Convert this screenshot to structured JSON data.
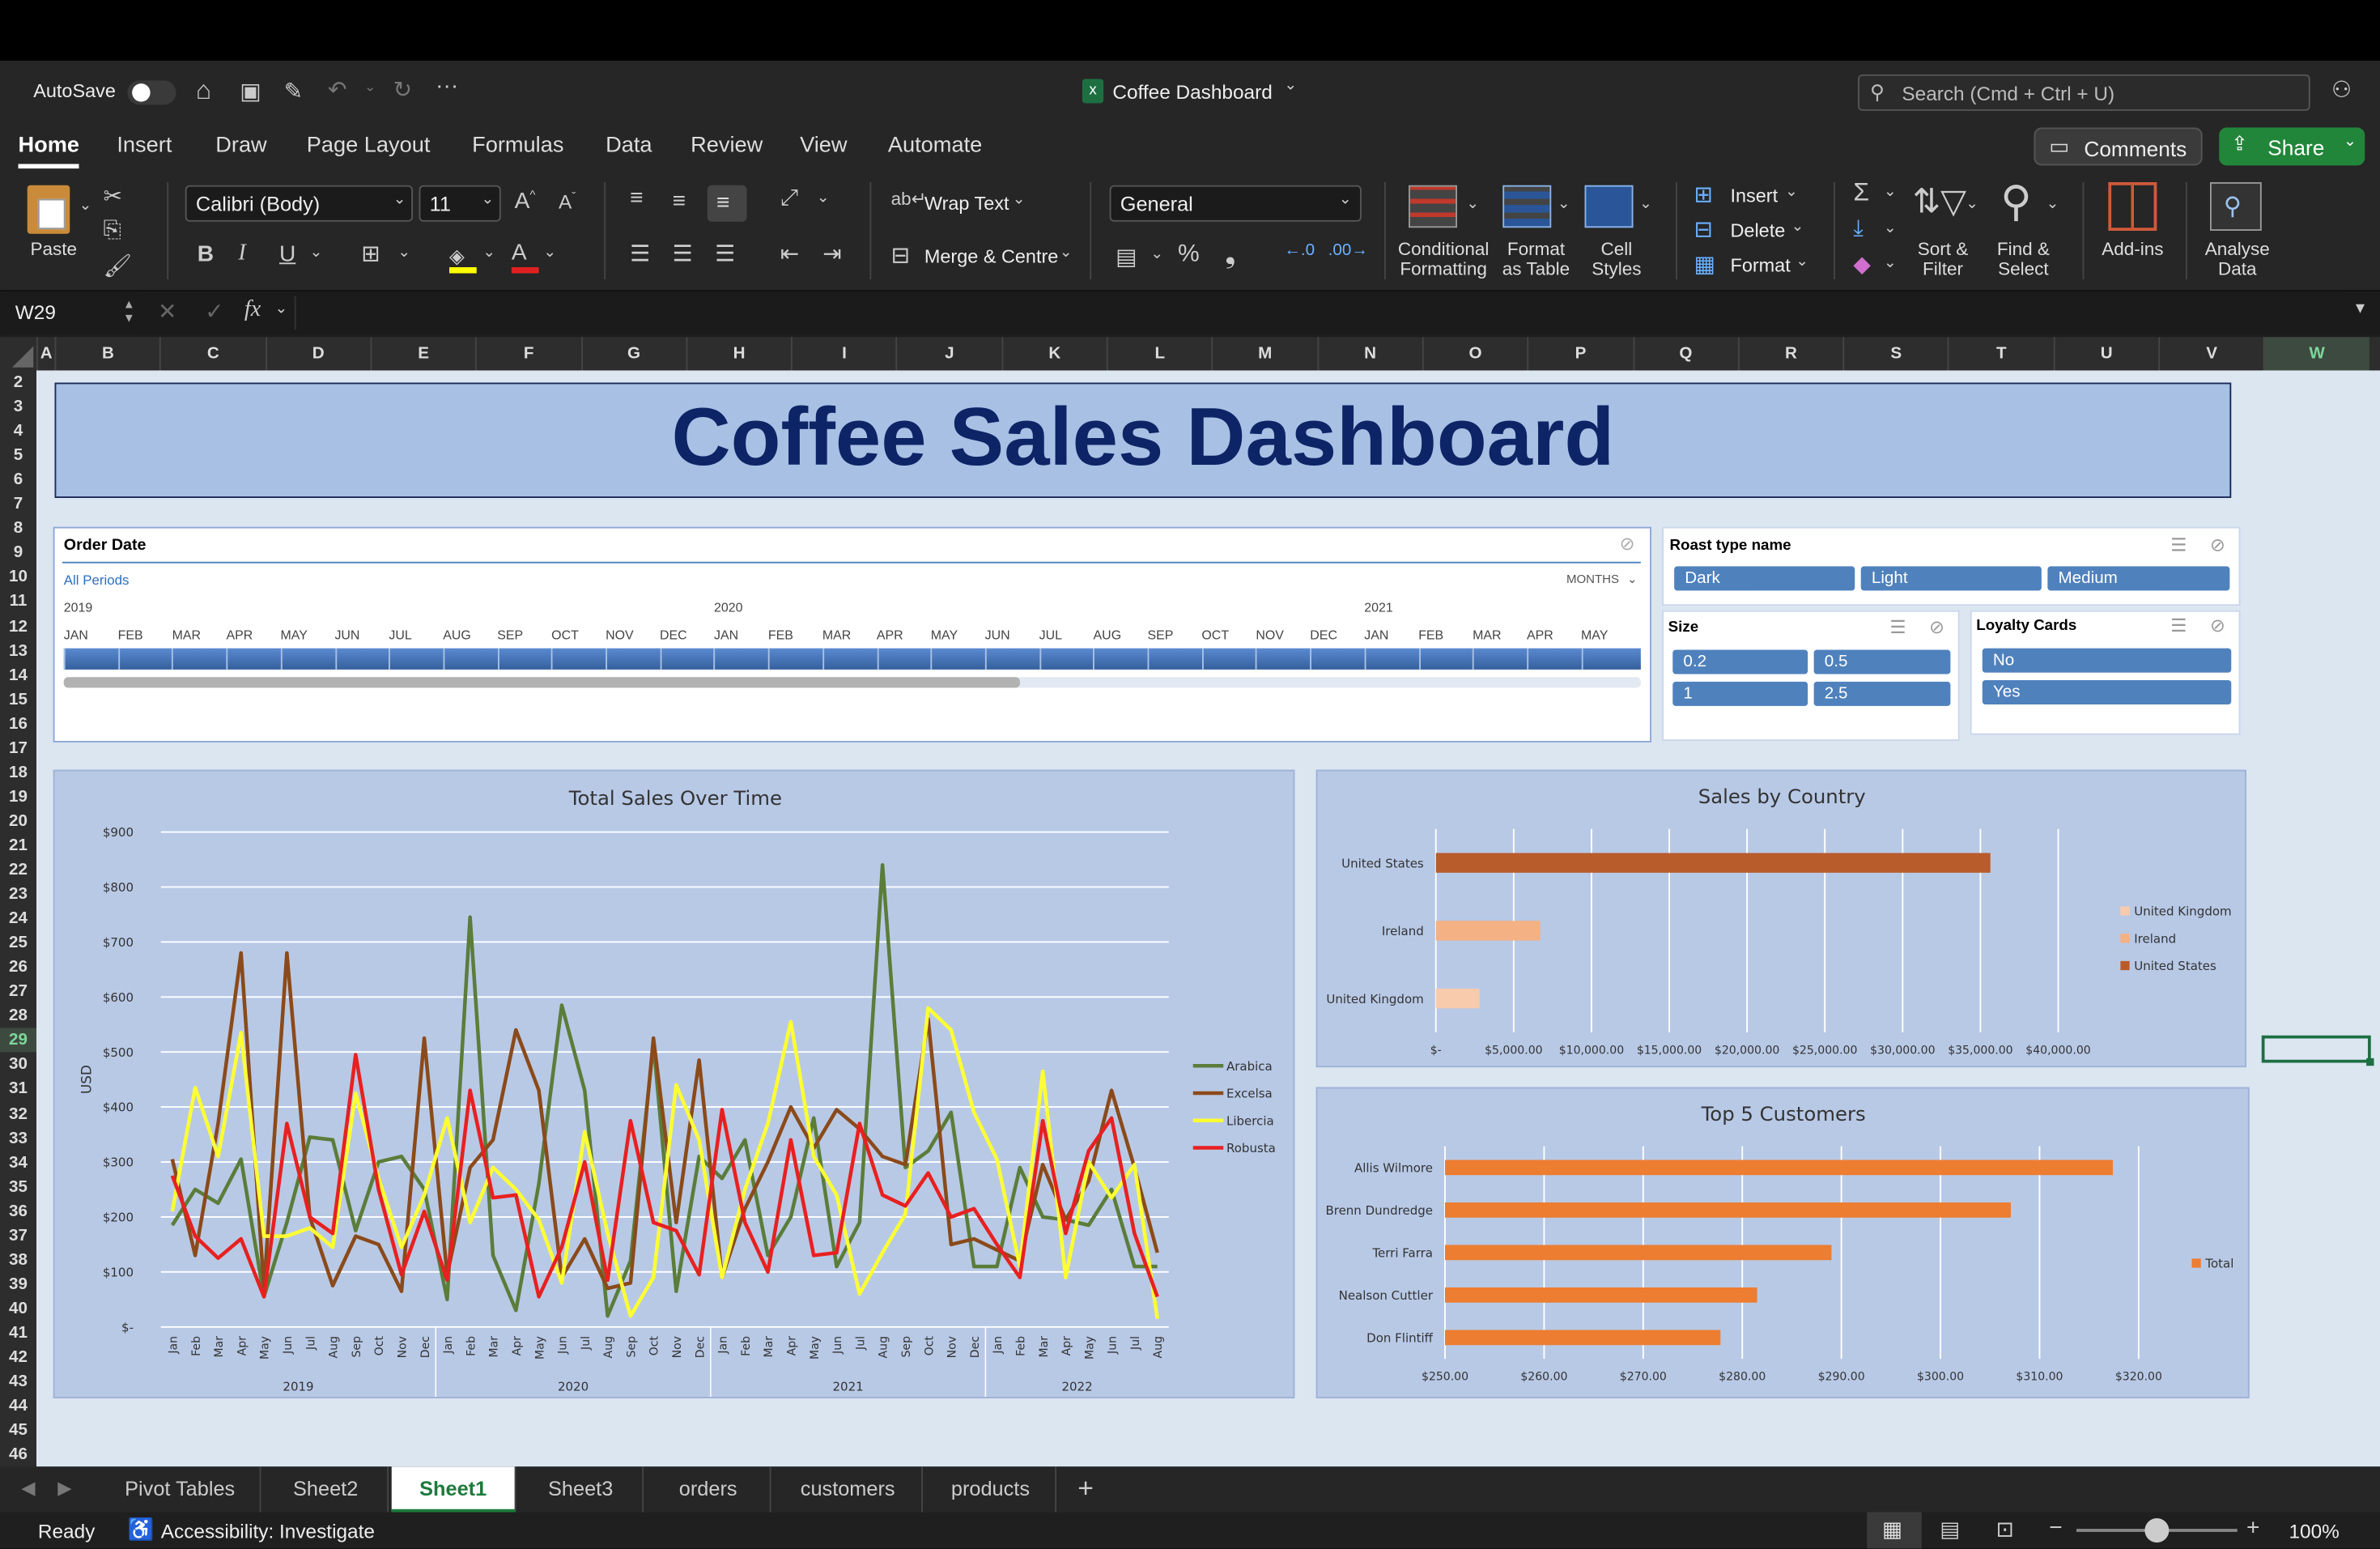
{
  "titlebar": {
    "autosave": "AutoSave",
    "doc_title": "Coffee Dashboard",
    "search_placeholder": "Search (Cmd + Ctrl + U)"
  },
  "menu": {
    "items": [
      "Home",
      "Insert",
      "Draw",
      "Page Layout",
      "Formulas",
      "Data",
      "Review",
      "View",
      "Automate"
    ],
    "comments": "Comments",
    "share": "Share"
  },
  "ribbon": {
    "paste": "Paste",
    "font": "Calibri (Body)",
    "size": "11",
    "wrap": "Wrap Text",
    "merge": "Merge & Centre",
    "format": "General",
    "cond": "Conditional Formatting",
    "fmt_table": "Format as Table",
    "cell_styles": "Cell Styles",
    "insert": "Insert",
    "delete": "Delete",
    "format_btn": "Format",
    "sort": "Sort & Filter",
    "find": "Find & Select",
    "addins": "Add-ins",
    "analyse": "Analyse Data"
  },
  "formula_bar": {
    "name_box": "W29",
    "value": ""
  },
  "columns": [
    "A",
    "B",
    "C",
    "D",
    "E",
    "F",
    "G",
    "H",
    "I",
    "J",
    "K",
    "L",
    "M",
    "N",
    "O",
    "P",
    "Q",
    "R",
    "S",
    "T",
    "U",
    "V",
    "W"
  ],
  "rows": [
    "2",
    "3",
    "4",
    "5",
    "6",
    "7",
    "8",
    "9",
    "10",
    "11",
    "12",
    "13",
    "14",
    "15",
    "16",
    "17",
    "18",
    "19",
    "20",
    "21",
    "22",
    "23",
    "24",
    "25",
    "26",
    "27",
    "28",
    "29",
    "30",
    "31",
    "32",
    "33",
    "34",
    "35",
    "36",
    "37",
    "38",
    "39",
    "40",
    "41",
    "42",
    "43",
    "44",
    "45",
    "46"
  ],
  "dashboard": {
    "title": "Coffee Sales Dashboard"
  },
  "timeline": {
    "title": "Order Date",
    "all_periods": "All Periods",
    "level": "MONTHS",
    "years": [
      "2019",
      "2020",
      "2021"
    ],
    "months": [
      "JAN",
      "FEB",
      "MAR",
      "APR",
      "MAY",
      "JUN",
      "JUL",
      "AUG",
      "SEP",
      "OCT",
      "NOV",
      "DEC",
      "JAN",
      "FEB",
      "MAR",
      "APR",
      "MAY",
      "JUN",
      "JUL",
      "AUG",
      "SEP",
      "OCT",
      "NOV",
      "DEC",
      "JAN",
      "FEB",
      "MAR",
      "APR",
      "MAY"
    ]
  },
  "slicers": {
    "roast": {
      "title": "Roast type name",
      "items": [
        "Dark",
        "Light",
        "Medium"
      ]
    },
    "size": {
      "title": "Size",
      "items": [
        "0.2",
        "0.5",
        "1",
        "2.5"
      ]
    },
    "loyalty": {
      "title": "Loyalty Cards",
      "items": [
        "No",
        "Yes"
      ]
    }
  },
  "chart_data": [
    {
      "type": "line",
      "title": "Total Sales Over Time",
      "ylabel": "USD",
      "ylim": [
        0,
        900
      ],
      "yticks": [
        "$-",
        "$100",
        "$200",
        "$300",
        "$400",
        "$500",
        "$600",
        "$700",
        "$800",
        "$900"
      ],
      "months": [
        "Jan",
        "Feb",
        "Mar",
        "Apr",
        "May",
        "Jun",
        "Jul",
        "Aug",
        "Sep",
        "Oct",
        "Nov",
        "Dec",
        "Jan",
        "Feb",
        "Mar",
        "Apr",
        "May",
        "Jun",
        "Jul",
        "Aug",
        "Sep",
        "Oct",
        "Nov",
        "Dec",
        "Jan",
        "Feb",
        "Mar",
        "Apr",
        "May",
        "Jun",
        "Jul",
        "Aug",
        "Sep",
        "Oct",
        "Nov",
        "Dec",
        "Jan",
        "Feb",
        "Mar",
        "Apr",
        "May",
        "Jun",
        "Jul",
        "Aug"
      ],
      "years": [
        "2019",
        "2020",
        "2021",
        "2022"
      ],
      "series": [
        {
          "name": "Arabica",
          "color": "#5a7d3a",
          "values": [
            185,
            250,
            225,
            305,
            55,
            190,
            345,
            340,
            175,
            300,
            310,
            250,
            50,
            745,
            130,
            30,
            260,
            585,
            430,
            20,
            120,
            515,
            65,
            310,
            270,
            340,
            130,
            200,
            380,
            110,
            190,
            840,
            290,
            320,
            390,
            110,
            110,
            290,
            200,
            195,
            185,
            250,
            110,
            110
          ]
        },
        {
          "name": "Excelsa",
          "color": "#8b4a1a",
          "values": [
            305,
            130,
            370,
            680,
            70,
            680,
            200,
            75,
            165,
            150,
            65,
            525,
            95,
            290,
            340,
            540,
            430,
            90,
            160,
            70,
            80,
            525,
            190,
            485,
            90,
            215,
            300,
            400,
            325,
            395,
            360,
            310,
            295,
            560,
            150,
            160,
            140,
            120,
            295,
            195,
            265,
            430,
            290,
            135
          ]
        },
        {
          "name": "Libercia",
          "color": "#ffff33",
          "values": [
            210,
            435,
            310,
            535,
            165,
            165,
            180,
            145,
            425,
            270,
            145,
            240,
            380,
            190,
            290,
            250,
            195,
            80,
            355,
            170,
            20,
            90,
            440,
            340,
            90,
            250,
            370,
            555,
            310,
            240,
            60,
            135,
            205,
            580,
            540,
            390,
            305,
            110,
            465,
            90,
            300,
            235,
            295,
            15
          ]
        },
        {
          "name": "Robusta",
          "color": "#e82020",
          "values": [
            275,
            165,
            125,
            160,
            55,
            370,
            200,
            170,
            495,
            250,
            95,
            210,
            85,
            430,
            235,
            240,
            55,
            145,
            300,
            85,
            375,
            190,
            175,
            95,
            395,
            190,
            100,
            340,
            130,
            135,
            370,
            240,
            220,
            280,
            200,
            215,
            150,
            90,
            375,
            170,
            320,
            380,
            170,
            55
          ]
        }
      ]
    },
    {
      "type": "bar",
      "title": "Sales by Country",
      "categories": [
        "United States",
        "Ireland",
        "United Kingdom"
      ],
      "values": [
        35640,
        6700,
        2800
      ],
      "xticks": [
        "$-",
        "$5,000.00",
        "$10,000.00",
        "$15,000.00",
        "$20,000.00",
        "$25,000.00",
        "$30,000.00",
        "$35,000.00",
        "$40,000.00"
      ],
      "xlim": [
        0,
        40000
      ],
      "colors": [
        "#b85c2c",
        "#f4b183",
        "#f8cbad"
      ],
      "legend": [
        "United Kingdom",
        "Ireland",
        "United States"
      ],
      "legend_colors": [
        "#f8cbad",
        "#f4b183",
        "#b85c2c"
      ]
    },
    {
      "type": "bar",
      "title": "Top 5 Customers",
      "categories": [
        "Allis Wilmore",
        "Brenn Dundredge",
        "Terri Farra",
        "Nealson Cuttler",
        "Don Flintiff"
      ],
      "values": [
        317.4,
        307.1,
        289.0,
        281.5,
        277.8
      ],
      "xticks": [
        "$250.00",
        "$260.00",
        "$270.00",
        "$280.00",
        "$290.00",
        "$300.00",
        "$310.00",
        "$320.00"
      ],
      "xlim": [
        250,
        320
      ],
      "color": "#ed7d31",
      "legend": [
        "Total"
      ]
    }
  ],
  "sheets": {
    "tabs": [
      "Pivot Tables",
      "Sheet2",
      "Sheet1",
      "Sheet3",
      "orders",
      "customers",
      "products"
    ],
    "active": "Sheet1"
  },
  "status": {
    "ready": "Ready",
    "accessibility": "Accessibility: Investigate",
    "zoom": "100%"
  }
}
